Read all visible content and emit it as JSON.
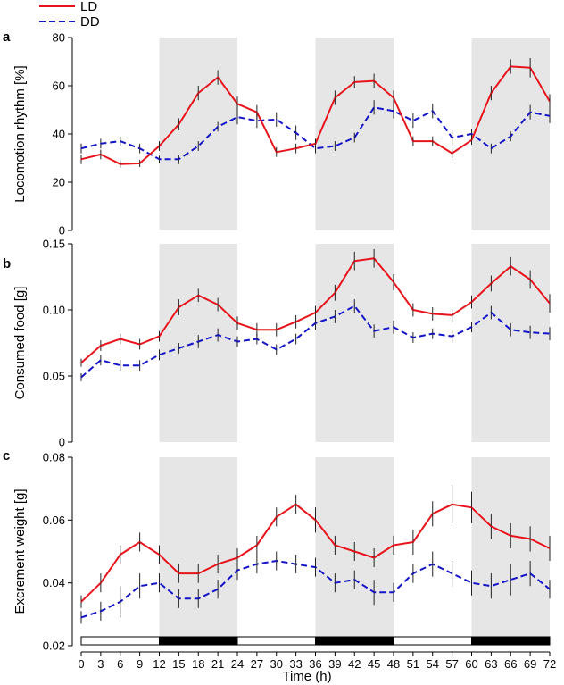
{
  "legend": [
    {
      "label": "LD",
      "color": "#e8141c",
      "dash": "solid"
    },
    {
      "label": "DD",
      "color": "#1414c8",
      "dash": "dashed"
    }
  ],
  "xaxis": {
    "label": "Time (h)",
    "ticks": [
      0,
      3,
      6,
      9,
      12,
      15,
      18,
      21,
      24,
      27,
      30,
      33,
      36,
      39,
      42,
      45,
      48,
      51,
      54,
      57,
      60,
      63,
      66,
      69,
      72
    ],
    "range": [
      0,
      72
    ]
  },
  "shading": {
    "color": "#e6e6e6",
    "dark_periods": [
      [
        12,
        24
      ],
      [
        36,
        48
      ],
      [
        60,
        72
      ]
    ]
  },
  "light_dark_bar": [
    {
      "from": 0,
      "to": 12,
      "state": "light"
    },
    {
      "from": 12,
      "to": 24,
      "state": "dark"
    },
    {
      "from": 24,
      "to": 36,
      "state": "light"
    },
    {
      "from": 36,
      "to": 48,
      "state": "dark"
    },
    {
      "from": 48,
      "to": 60,
      "state": "light"
    },
    {
      "from": 60,
      "to": 72,
      "state": "dark"
    }
  ],
  "chart_data": [
    {
      "type": "line",
      "panel": "a",
      "ylabel": "Locomotion rhythm [%]",
      "ylim": [
        0,
        80
      ],
      "yticks": [
        0,
        20,
        40,
        60,
        80
      ],
      "ytick_labels": [
        "0",
        "20",
        "40",
        "60",
        "80"
      ],
      "x": [
        0,
        3,
        6,
        9,
        12,
        15,
        18,
        21,
        24,
        27,
        30,
        33,
        36,
        39,
        42,
        45,
        48,
        51,
        54,
        57,
        60,
        63,
        66,
        69,
        72
      ],
      "series": [
        {
          "name": "LD",
          "values": [
            29.5,
            31.5,
            27.5,
            27.8,
            35,
            44,
            57,
            63.5,
            52.5,
            49,
            32.5,
            34,
            36,
            55,
            61.5,
            62,
            55,
            37,
            37,
            32,
            37.5,
            57,
            68,
            67.5,
            53.5
          ],
          "errors": [
            2,
            2,
            1.5,
            1.5,
            2,
            2.5,
            3,
            3,
            3,
            3,
            2,
            2,
            2,
            3,
            2.5,
            3,
            3,
            2,
            2,
            2,
            2,
            3,
            3,
            4,
            3
          ]
        },
        {
          "name": "DD",
          "values": [
            34,
            36,
            37,
            34,
            29.5,
            29.5,
            35,
            43,
            47,
            45.5,
            46,
            40.5,
            34,
            35,
            38.5,
            51,
            49.5,
            45.5,
            49.5,
            38.5,
            40,
            34,
            39,
            49,
            47.5
          ],
          "errors": [
            2,
            2,
            2,
            2,
            1.5,
            2,
            2,
            2,
            3,
            3,
            3,
            3,
            2,
            2,
            2,
            3,
            3,
            3,
            3,
            3,
            2,
            2,
            2,
            3,
            3
          ]
        }
      ]
    },
    {
      "type": "line",
      "panel": "b",
      "ylabel": "Consumed food [g]",
      "ylim": [
        0,
        0.15
      ],
      "yticks": [
        0,
        0.05,
        0.1,
        0.15
      ],
      "ytick_labels": [
        "0",
        "0.05",
        "0.10",
        "0.15"
      ],
      "x": [
        0,
        3,
        6,
        9,
        12,
        15,
        18,
        21,
        24,
        27,
        30,
        33,
        36,
        39,
        42,
        45,
        48,
        51,
        54,
        57,
        60,
        63,
        66,
        69,
        72
      ],
      "series": [
        {
          "name": "LD",
          "values": [
            0.06,
            0.073,
            0.078,
            0.074,
            0.08,
            0.102,
            0.111,
            0.104,
            0.09,
            0.085,
            0.085,
            0.091,
            0.098,
            0.113,
            0.137,
            0.139,
            0.121,
            0.1,
            0.097,
            0.096,
            0.106,
            0.12,
            0.133,
            0.123,
            0.105
          ],
          "errors": [
            0.003,
            0.004,
            0.004,
            0.004,
            0.004,
            0.006,
            0.005,
            0.005,
            0.005,
            0.005,
            0.005,
            0.005,
            0.005,
            0.006,
            0.007,
            0.007,
            0.006,
            0.005,
            0.005,
            0.005,
            0.005,
            0.006,
            0.007,
            0.007,
            0.007
          ]
        },
        {
          "name": "DD",
          "values": [
            0.049,
            0.062,
            0.058,
            0.058,
            0.066,
            0.071,
            0.076,
            0.081,
            0.076,
            0.078,
            0.07,
            0.078,
            0.09,
            0.095,
            0.103,
            0.084,
            0.087,
            0.079,
            0.082,
            0.08,
            0.087,
            0.098,
            0.085,
            0.083,
            0.082
          ],
          "errors": [
            0.003,
            0.004,
            0.004,
            0.004,
            0.004,
            0.004,
            0.005,
            0.005,
            0.004,
            0.004,
            0.004,
            0.004,
            0.005,
            0.005,
            0.005,
            0.005,
            0.005,
            0.004,
            0.004,
            0.005,
            0.004,
            0.005,
            0.005,
            0.005,
            0.005
          ]
        }
      ]
    },
    {
      "type": "line",
      "panel": "c",
      "ylabel": "Excrement weight [g]",
      "ylim": [
        0.02,
        0.08
      ],
      "yticks": [
        0.02,
        0.04,
        0.06,
        0.08
      ],
      "ytick_labels": [
        "0.02",
        "0.04",
        "0.06",
        "0.08"
      ],
      "x": [
        0,
        3,
        6,
        9,
        12,
        15,
        18,
        21,
        24,
        27,
        30,
        33,
        36,
        39,
        42,
        45,
        48,
        51,
        54,
        57,
        60,
        63,
        66,
        69,
        72
      ],
      "series": [
        {
          "name": "LD",
          "values": [
            0.034,
            0.04,
            0.049,
            0.053,
            0.049,
            0.043,
            0.043,
            0.046,
            0.048,
            0.052,
            0.061,
            0.065,
            0.06,
            0.052,
            0.05,
            0.048,
            0.052,
            0.053,
            0.062,
            0.065,
            0.064,
            0.058,
            0.055,
            0.054,
            0.051
          ],
          "errors": [
            0.002,
            0.003,
            0.003,
            0.003,
            0.003,
            0.003,
            0.003,
            0.003,
            0.003,
            0.003,
            0.003,
            0.003,
            0.004,
            0.003,
            0.003,
            0.003,
            0.003,
            0.004,
            0.004,
            0.006,
            0.005,
            0.004,
            0.004,
            0.004,
            0.004
          ]
        },
        {
          "name": "DD",
          "values": [
            0.029,
            0.031,
            0.034,
            0.039,
            0.04,
            0.035,
            0.035,
            0.038,
            0.044,
            0.046,
            0.047,
            0.046,
            0.045,
            0.04,
            0.041,
            0.037,
            0.037,
            0.043,
            0.046,
            0.043,
            0.04,
            0.039,
            0.041,
            0.043,
            0.038
          ],
          "errors": [
            0.002,
            0.003,
            0.005,
            0.004,
            0.003,
            0.003,
            0.003,
            0.003,
            0.003,
            0.003,
            0.003,
            0.003,
            0.003,
            0.003,
            0.003,
            0.004,
            0.003,
            0.003,
            0.004,
            0.004,
            0.004,
            0.004,
            0.005,
            0.004,
            0.003
          ]
        }
      ]
    }
  ]
}
